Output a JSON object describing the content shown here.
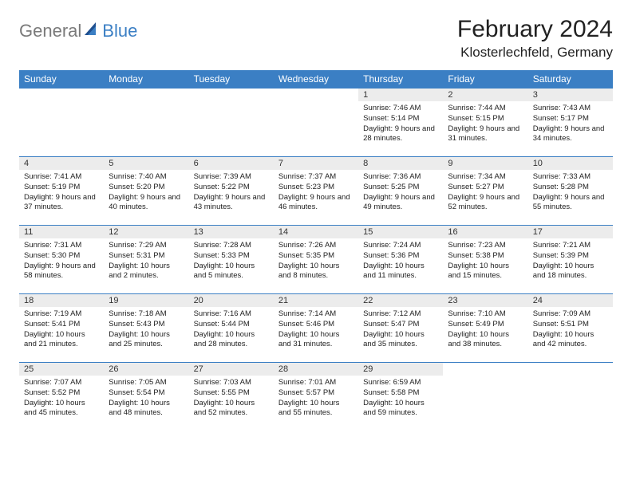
{
  "logo": {
    "general": "General",
    "blue": "Blue"
  },
  "title": "February 2024",
  "location": "Klosterlechfeld, Germany",
  "colors": {
    "header_bg": "#3b7fc4",
    "header_text": "#ffffff",
    "daynum_bg": "#ececec",
    "border": "#3b7fc4",
    "body_text": "#222222",
    "logo_gray": "#7a7a7a",
    "logo_blue": "#3b7fc4"
  },
  "weekdays": [
    "Sunday",
    "Monday",
    "Tuesday",
    "Wednesday",
    "Thursday",
    "Friday",
    "Saturday"
  ],
  "weeks": [
    [
      null,
      null,
      null,
      null,
      {
        "n": "1",
        "sr": "7:46 AM",
        "ss": "5:14 PM",
        "dl": "9 hours and 28 minutes."
      },
      {
        "n": "2",
        "sr": "7:44 AM",
        "ss": "5:15 PM",
        "dl": "9 hours and 31 minutes."
      },
      {
        "n": "3",
        "sr": "7:43 AM",
        "ss": "5:17 PM",
        "dl": "9 hours and 34 minutes."
      }
    ],
    [
      {
        "n": "4",
        "sr": "7:41 AM",
        "ss": "5:19 PM",
        "dl": "9 hours and 37 minutes."
      },
      {
        "n": "5",
        "sr": "7:40 AM",
        "ss": "5:20 PM",
        "dl": "9 hours and 40 minutes."
      },
      {
        "n": "6",
        "sr": "7:39 AM",
        "ss": "5:22 PM",
        "dl": "9 hours and 43 minutes."
      },
      {
        "n": "7",
        "sr": "7:37 AM",
        "ss": "5:23 PM",
        "dl": "9 hours and 46 minutes."
      },
      {
        "n": "8",
        "sr": "7:36 AM",
        "ss": "5:25 PM",
        "dl": "9 hours and 49 minutes."
      },
      {
        "n": "9",
        "sr": "7:34 AM",
        "ss": "5:27 PM",
        "dl": "9 hours and 52 minutes."
      },
      {
        "n": "10",
        "sr": "7:33 AM",
        "ss": "5:28 PM",
        "dl": "9 hours and 55 minutes."
      }
    ],
    [
      {
        "n": "11",
        "sr": "7:31 AM",
        "ss": "5:30 PM",
        "dl": "9 hours and 58 minutes."
      },
      {
        "n": "12",
        "sr": "7:29 AM",
        "ss": "5:31 PM",
        "dl": "10 hours and 2 minutes."
      },
      {
        "n": "13",
        "sr": "7:28 AM",
        "ss": "5:33 PM",
        "dl": "10 hours and 5 minutes."
      },
      {
        "n": "14",
        "sr": "7:26 AM",
        "ss": "5:35 PM",
        "dl": "10 hours and 8 minutes."
      },
      {
        "n": "15",
        "sr": "7:24 AM",
        "ss": "5:36 PM",
        "dl": "10 hours and 11 minutes."
      },
      {
        "n": "16",
        "sr": "7:23 AM",
        "ss": "5:38 PM",
        "dl": "10 hours and 15 minutes."
      },
      {
        "n": "17",
        "sr": "7:21 AM",
        "ss": "5:39 PM",
        "dl": "10 hours and 18 minutes."
      }
    ],
    [
      {
        "n": "18",
        "sr": "7:19 AM",
        "ss": "5:41 PM",
        "dl": "10 hours and 21 minutes."
      },
      {
        "n": "19",
        "sr": "7:18 AM",
        "ss": "5:43 PM",
        "dl": "10 hours and 25 minutes."
      },
      {
        "n": "20",
        "sr": "7:16 AM",
        "ss": "5:44 PM",
        "dl": "10 hours and 28 minutes."
      },
      {
        "n": "21",
        "sr": "7:14 AM",
        "ss": "5:46 PM",
        "dl": "10 hours and 31 minutes."
      },
      {
        "n": "22",
        "sr": "7:12 AM",
        "ss": "5:47 PM",
        "dl": "10 hours and 35 minutes."
      },
      {
        "n": "23",
        "sr": "7:10 AM",
        "ss": "5:49 PM",
        "dl": "10 hours and 38 minutes."
      },
      {
        "n": "24",
        "sr": "7:09 AM",
        "ss": "5:51 PM",
        "dl": "10 hours and 42 minutes."
      }
    ],
    [
      {
        "n": "25",
        "sr": "7:07 AM",
        "ss": "5:52 PM",
        "dl": "10 hours and 45 minutes."
      },
      {
        "n": "26",
        "sr": "7:05 AM",
        "ss": "5:54 PM",
        "dl": "10 hours and 48 minutes."
      },
      {
        "n": "27",
        "sr": "7:03 AM",
        "ss": "5:55 PM",
        "dl": "10 hours and 52 minutes."
      },
      {
        "n": "28",
        "sr": "7:01 AM",
        "ss": "5:57 PM",
        "dl": "10 hours and 55 minutes."
      },
      {
        "n": "29",
        "sr": "6:59 AM",
        "ss": "5:58 PM",
        "dl": "10 hours and 59 minutes."
      },
      null,
      null
    ]
  ],
  "labels": {
    "sunrise": "Sunrise: ",
    "sunset": "Sunset: ",
    "daylight": "Daylight: "
  }
}
